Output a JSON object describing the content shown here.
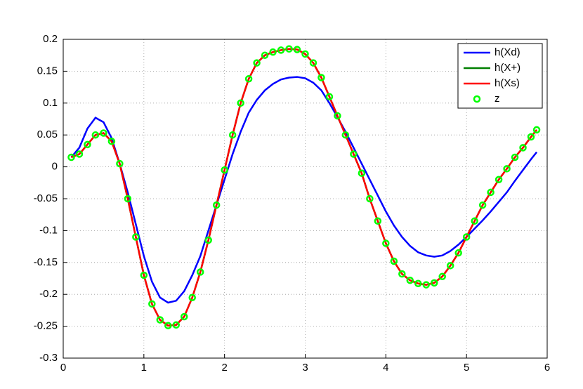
{
  "chart_data": {
    "type": "line",
    "x": [
      0.1,
      0.2,
      0.3,
      0.4,
      0.5,
      0.6,
      0.7,
      0.8,
      0.9,
      1.0,
      1.1,
      1.2,
      1.3,
      1.4,
      1.5,
      1.6,
      1.7,
      1.8,
      1.9,
      2.0,
      2.1,
      2.2,
      2.3,
      2.4,
      2.5,
      2.6,
      2.7,
      2.8,
      2.9,
      3.0,
      3.1,
      3.2,
      3.3,
      3.4,
      3.5,
      3.6,
      3.7,
      3.8,
      3.9,
      4.0,
      4.1,
      4.2,
      4.3,
      4.4,
      4.5,
      4.6,
      4.7,
      4.8,
      4.9,
      5.0,
      5.1,
      5.2,
      5.3,
      5.4,
      5.5,
      5.6,
      5.7,
      5.8,
      5.87
    ],
    "series": [
      {
        "name": "h(Xd)",
        "color": "#0000ff",
        "style": "line",
        "values": [
          0.015,
          0.03,
          0.06,
          0.077,
          0.07,
          0.045,
          0.005,
          -0.04,
          -0.09,
          -0.14,
          -0.18,
          -0.205,
          -0.213,
          -0.21,
          -0.195,
          -0.17,
          -0.14,
          -0.1,
          -0.06,
          -0.02,
          0.02,
          0.055,
          0.085,
          0.105,
          0.12,
          0.13,
          0.137,
          0.14,
          0.141,
          0.139,
          0.132,
          0.12,
          0.1,
          0.078,
          0.055,
          0.03,
          0.005,
          -0.02,
          -0.045,
          -0.07,
          -0.092,
          -0.11,
          -0.124,
          -0.134,
          -0.139,
          -0.141,
          -0.139,
          -0.132,
          -0.122,
          -0.11,
          -0.097,
          -0.084,
          -0.07,
          -0.055,
          -0.04,
          -0.022,
          -0.005,
          0.012,
          0.023
        ]
      },
      {
        "name": "h(X+)",
        "color": "#007f00",
        "style": "line",
        "values": [
          0.015,
          0.02,
          0.035,
          0.05,
          0.053,
          0.04,
          0.005,
          -0.05,
          -0.11,
          -0.17,
          -0.215,
          -0.24,
          -0.249,
          -0.248,
          -0.235,
          -0.205,
          -0.165,
          -0.115,
          -0.06,
          -0.005,
          0.05,
          0.1,
          0.138,
          0.163,
          0.175,
          0.18,
          0.183,
          0.185,
          0.184,
          0.177,
          0.163,
          0.14,
          0.11,
          0.08,
          0.05,
          0.02,
          -0.01,
          -0.05,
          -0.085,
          -0.12,
          -0.148,
          -0.168,
          -0.178,
          -0.183,
          -0.185,
          -0.182,
          -0.172,
          -0.155,
          -0.135,
          -0.11,
          -0.085,
          -0.06,
          -0.04,
          -0.02,
          -0.003,
          0.015,
          0.03,
          0.047,
          0.058
        ]
      },
      {
        "name": "h(Xs)",
        "color": "#ff0000",
        "style": "line",
        "values": [
          0.015,
          0.02,
          0.035,
          0.05,
          0.053,
          0.04,
          0.005,
          -0.05,
          -0.11,
          -0.17,
          -0.215,
          -0.24,
          -0.249,
          -0.248,
          -0.235,
          -0.205,
          -0.165,
          -0.115,
          -0.06,
          -0.005,
          0.05,
          0.1,
          0.138,
          0.163,
          0.175,
          0.18,
          0.183,
          0.185,
          0.184,
          0.177,
          0.163,
          0.14,
          0.11,
          0.08,
          0.05,
          0.02,
          -0.01,
          -0.05,
          -0.085,
          -0.12,
          -0.148,
          -0.168,
          -0.178,
          -0.183,
          -0.185,
          -0.182,
          -0.172,
          -0.155,
          -0.135,
          -0.11,
          -0.085,
          -0.06,
          -0.04,
          -0.02,
          -0.003,
          0.015,
          0.03,
          0.047,
          0.058
        ]
      },
      {
        "name": "z",
        "color": "#00ff00",
        "style": "marker",
        "values": [
          0.015,
          0.02,
          0.035,
          0.05,
          0.053,
          0.04,
          0.005,
          -0.05,
          -0.11,
          -0.17,
          -0.215,
          -0.24,
          -0.249,
          -0.248,
          -0.235,
          -0.205,
          -0.165,
          -0.115,
          -0.06,
          -0.005,
          0.05,
          0.1,
          0.138,
          0.163,
          0.175,
          0.18,
          0.183,
          0.185,
          0.184,
          0.177,
          0.163,
          0.14,
          0.11,
          0.08,
          0.05,
          0.02,
          -0.01,
          -0.05,
          -0.085,
          -0.12,
          -0.148,
          -0.168,
          -0.178,
          -0.183,
          -0.185,
          -0.182,
          -0.172,
          -0.155,
          -0.135,
          -0.11,
          -0.085,
          -0.06,
          -0.04,
          -0.02,
          -0.003,
          0.015,
          0.03,
          0.047,
          0.058
        ]
      }
    ],
    "xlim": [
      0,
      6
    ],
    "xticks": [
      0,
      1,
      2,
      3,
      4,
      5,
      6
    ],
    "ylim": [
      -0.3,
      0.2
    ],
    "yticks": [
      -0.3,
      -0.25,
      -0.2,
      -0.15,
      -0.1,
      -0.05,
      0,
      0.05,
      0.1,
      0.15,
      0.2
    ],
    "grid": true,
    "legend": "northeast"
  }
}
